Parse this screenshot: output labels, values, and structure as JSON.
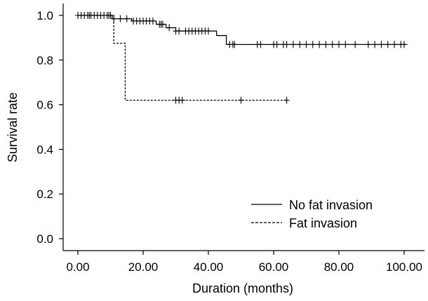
{
  "chart_data": {
    "type": "line",
    "subtype": "kaplan-meier-step",
    "title": "",
    "xlabel": "Duration (months)",
    "ylabel": "Survival rate",
    "xlim": [
      -5,
      105
    ],
    "ylim": [
      -0.05,
      1.05
    ],
    "x_ticks": [
      0,
      20,
      40,
      60,
      80,
      100
    ],
    "x_tick_labels": [
      "0.00",
      "20.00",
      "40.00",
      "60.00",
      "80.00",
      "100.00"
    ],
    "y_ticks": [
      0.0,
      0.2,
      0.4,
      0.6,
      0.8,
      1.0
    ],
    "y_tick_labels": [
      "0.0",
      "0.2",
      "0.4",
      "0.6",
      "0.8",
      "1.0"
    ],
    "grid": false,
    "legend_position": "bottom-right",
    "series": [
      {
        "name": "No fat invasion",
        "line_style": "solid",
        "color": "#000000",
        "steps": [
          {
            "x": 0,
            "y": 1.0
          },
          {
            "x": 10.5,
            "y": 0.985
          },
          {
            "x": 16.5,
            "y": 0.975
          },
          {
            "x": 24,
            "y": 0.96
          },
          {
            "x": 27,
            "y": 0.945
          },
          {
            "x": 30,
            "y": 0.93
          },
          {
            "x": 42.5,
            "y": 0.91
          },
          {
            "x": 45.5,
            "y": 0.87
          }
        ],
        "end_x": 101,
        "censored": [
          0,
          1,
          2,
          3,
          3.5,
          4,
          5,
          6,
          7,
          8,
          9,
          9.5,
          10,
          11,
          13,
          15,
          17,
          18,
          19,
          20,
          21,
          22,
          23,
          25,
          25.5,
          26,
          28,
          30,
          31,
          33,
          34,
          35,
          36,
          37,
          38,
          39,
          40,
          46.5,
          47.5,
          48,
          55,
          56,
          60,
          61,
          63,
          64,
          66,
          68,
          70,
          72,
          74,
          76,
          78,
          80,
          82,
          85,
          89,
          91,
          93,
          95,
          97,
          99,
          100
        ]
      },
      {
        "name": "Fat invasion",
        "line_style": "dashed",
        "color": "#000000",
        "steps": [
          {
            "x": 0,
            "y": 1.0
          },
          {
            "x": 11,
            "y": 0.875
          },
          {
            "x": 14.5,
            "y": 0.62
          }
        ],
        "end_x": 64,
        "censored": [
          30,
          31,
          32,
          50,
          64
        ]
      }
    ]
  }
}
